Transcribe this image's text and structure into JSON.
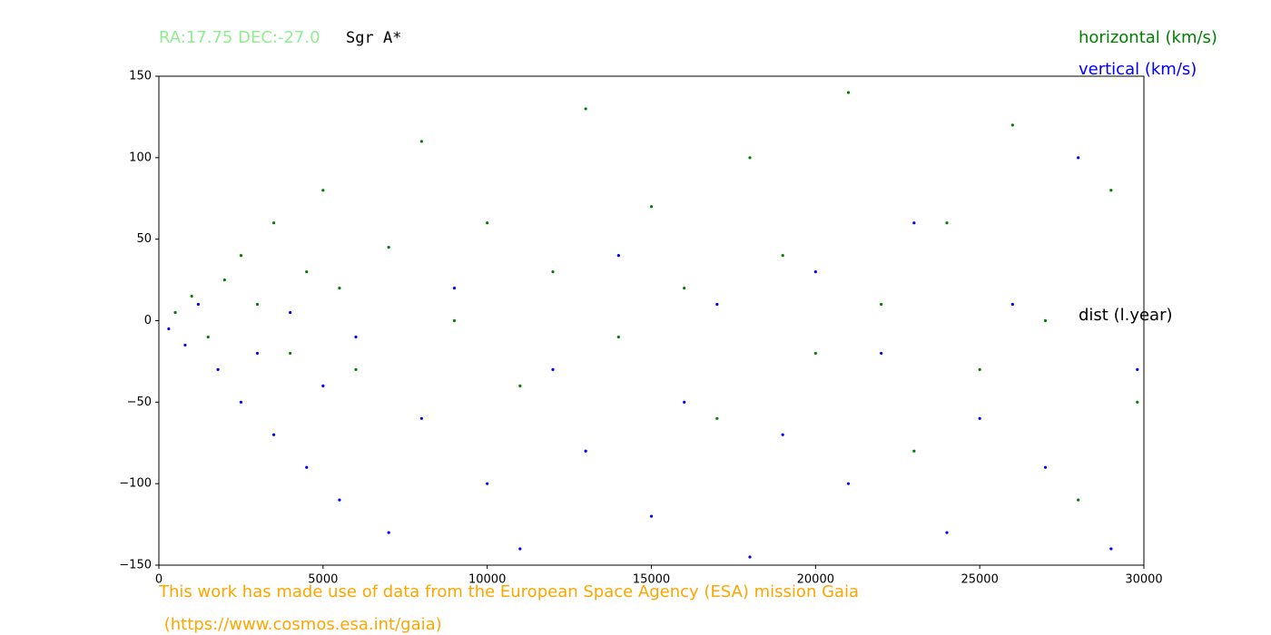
{
  "chart_data": {
    "type": "scatter",
    "title": "RA:17.75 DEC:-27.0",
    "subtitle": "Sgr A*",
    "x_label": "dist (l.year)",
    "credit": [
      "This work has made use of data from the European Space Agency (ESA) mission Gaia",
      " (https://www.cosmos.esa.int/gaia)"
    ],
    "xlim": [
      0,
      30000
    ],
    "ylim": [
      -150,
      150
    ],
    "xticks": [
      0,
      5000,
      10000,
      15000,
      20000,
      25000,
      30000
    ],
    "yticks": [
      {
        "value": -150,
        "label": "−150"
      },
      {
        "value": -100,
        "label": "−100"
      },
      {
        "value": -50,
        "label": "−50"
      },
      0,
      50,
      100,
      150
    ],
    "series": [
      {
        "name": "horizontal (km/s)",
        "color": "green",
        "x": [
          500,
          1000,
          1500,
          2000,
          2500,
          3000,
          3500,
          4000,
          4500,
          5000,
          5500,
          6000,
          7000,
          8000,
          9000,
          10000,
          11000,
          12000,
          13000,
          14000,
          15000,
          16000,
          17000,
          18000,
          19000,
          20000,
          21000,
          22000,
          23000,
          24000,
          25000,
          26000,
          27000,
          28000,
          29000,
          29800
        ],
        "values": [
          5,
          15,
          -10,
          25,
          40,
          10,
          60,
          -20,
          30,
          80,
          20,
          -30,
          45,
          110,
          0,
          60,
          -40,
          30,
          130,
          -10,
          70,
          20,
          -60,
          100,
          40,
          -20,
          140,
          10,
          -80,
          60,
          -30,
          120,
          0,
          -110,
          80,
          -50
        ]
      },
      {
        "name": "vertical (km/s)",
        "color": "blue",
        "x": [
          300,
          800,
          1200,
          1800,
          2500,
          3000,
          3500,
          4000,
          4500,
          5000,
          5500,
          6000,
          7000,
          8000,
          9000,
          10000,
          11000,
          12000,
          13000,
          14000,
          15000,
          16000,
          17000,
          18000,
          19000,
          20000,
          21000,
          22000,
          23000,
          24000,
          25000,
          26000,
          27000,
          28000,
          29000,
          29800
        ],
        "values": [
          -5,
          -15,
          10,
          -30,
          -50,
          -20,
          -70,
          5,
          -90,
          -40,
          -110,
          -10,
          -130,
          -60,
          20,
          -100,
          -140,
          -30,
          -80,
          40,
          -120,
          -50,
          10,
          -145,
          -70,
          30,
          -100,
          -20,
          60,
          -130,
          -60,
          10,
          -90,
          100,
          -140,
          -30
        ]
      }
    ]
  }
}
